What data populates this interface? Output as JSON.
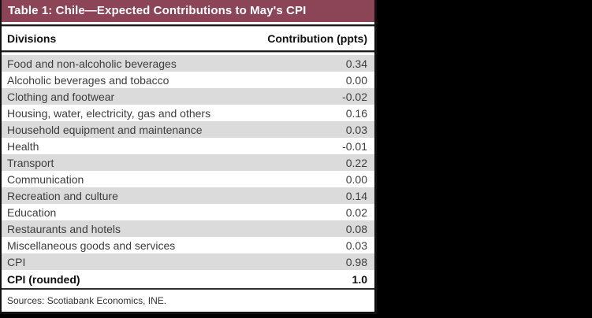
{
  "page": {
    "background": "#000000"
  },
  "table": {
    "title": "Table 1: Chile—Expected Contributions to May's CPI",
    "columns": {
      "division": "Divisions",
      "contribution": "Contribution (ppts)"
    },
    "rows": [
      {
        "division": "Food and non-alcoholic beverages",
        "value": "0.34",
        "bold": false
      },
      {
        "division": "Alcoholic beverages and tobacco",
        "value": "0.00",
        "bold": false
      },
      {
        "division": "Clothing and footwear",
        "value": "-0.02",
        "bold": false
      },
      {
        "division": "Housing, water, electricity, gas and others",
        "value": "0.16",
        "bold": false
      },
      {
        "division": "Household equipment and maintenance",
        "value": "0.03",
        "bold": false
      },
      {
        "division": "Health",
        "value": "-0.01",
        "bold": false
      },
      {
        "division": "Transport",
        "value": "0.22",
        "bold": false
      },
      {
        "division": "Communication",
        "value": "0.00",
        "bold": false
      },
      {
        "division": "Recreation and culture",
        "value": "0.14",
        "bold": false
      },
      {
        "division": "Education",
        "value": "0.02",
        "bold": false
      },
      {
        "division": "Restaurants and hotels",
        "value": "0.08",
        "bold": false
      },
      {
        "division": "Miscellaneous goods and services",
        "value": "0.03",
        "bold": false
      },
      {
        "division": "CPI",
        "value": "0.98",
        "bold": false
      },
      {
        "division": "CPI (rounded)",
        "value": "1.0",
        "bold": true
      }
    ],
    "footer": "Sources: Scotiabank Economics, INE.",
    "colors": {
      "title_bg": "#8C4557",
      "title_text": "#FFFFFF",
      "alt_row_bg": "#DBDBDB",
      "row_bg": "#FFFFFF",
      "body_text": "#3D3D3D",
      "border": "#111111"
    }
  },
  "chart_data": {
    "type": "table",
    "title": "Table 1: Chile—Expected Contributions to May's CPI",
    "columns": [
      "Divisions",
      "Contribution (ppts)"
    ],
    "rows": [
      [
        "Food and non-alcoholic beverages",
        0.34
      ],
      [
        "Alcoholic beverages and tobacco",
        0.0
      ],
      [
        "Clothing and footwear",
        -0.02
      ],
      [
        "Housing, water, electricity, gas and others",
        0.16
      ],
      [
        "Household equipment and maintenance",
        0.03
      ],
      [
        "Health",
        -0.01
      ],
      [
        "Transport",
        0.22
      ],
      [
        "Communication",
        0.0
      ],
      [
        "Recreation and culture",
        0.14
      ],
      [
        "Education",
        0.02
      ],
      [
        "Restaurants and hotels",
        0.08
      ],
      [
        "Miscellaneous goods and services",
        0.03
      ],
      [
        "CPI",
        0.98
      ],
      [
        "CPI (rounded)",
        1.0
      ]
    ],
    "source_note": "Sources: Scotiabank Economics, INE."
  }
}
